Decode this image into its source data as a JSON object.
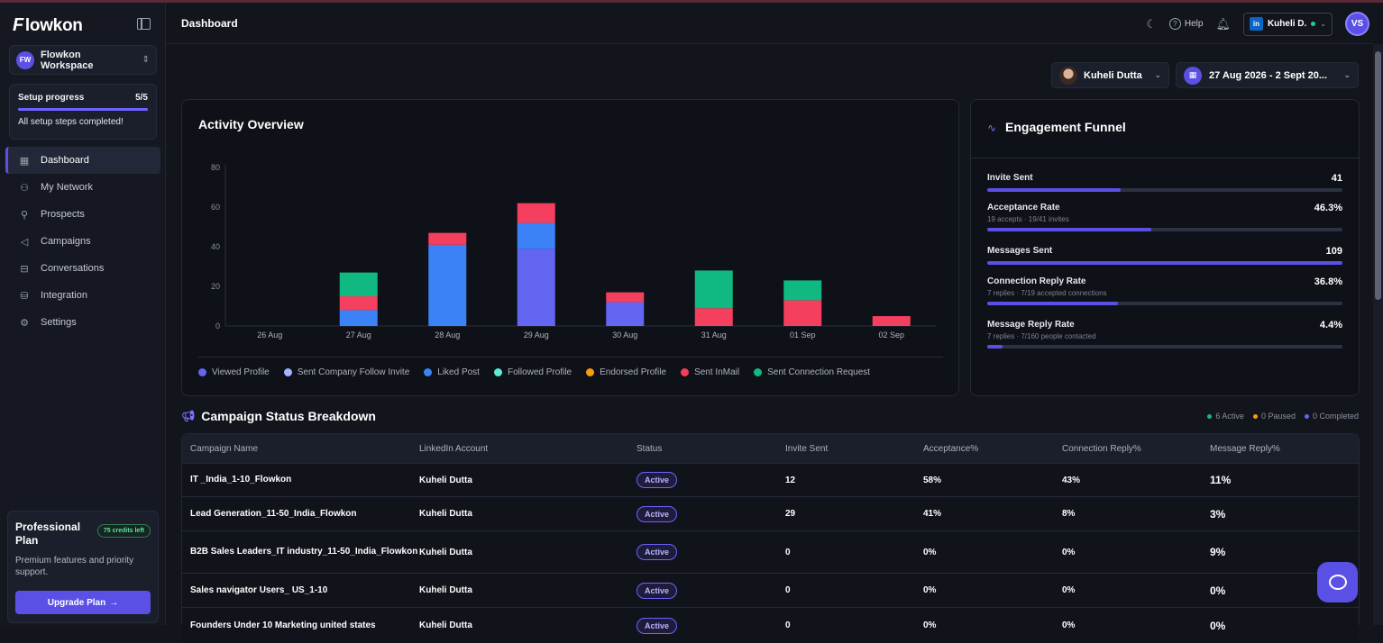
{
  "app": {
    "logo_text": "lowkon",
    "logo_mark": "F",
    "page_title": "Dashboard"
  },
  "workspace": {
    "initials": "FW",
    "name": "Flowkon Workspace"
  },
  "setup": {
    "title": "Setup progress",
    "count": "5/5",
    "progress": 1.0,
    "message": "All setup steps completed!"
  },
  "nav": [
    {
      "label": "Dashboard",
      "icon": "grid-icon",
      "glyph": "▦"
    },
    {
      "label": "My Network",
      "icon": "users-icon",
      "glyph": "⚇"
    },
    {
      "label": "Prospects",
      "icon": "search-icon",
      "glyph": "⚲"
    },
    {
      "label": "Campaigns",
      "icon": "megaphone-icon",
      "glyph": "◁"
    },
    {
      "label": "Conversations",
      "icon": "inbox-icon",
      "glyph": "⊟"
    },
    {
      "label": "Integration",
      "icon": "database-icon",
      "glyph": "⛁"
    },
    {
      "label": "Settings",
      "icon": "gear-icon",
      "glyph": "⚙"
    }
  ],
  "plan": {
    "title": "Professional Plan",
    "credits": "75 credits left",
    "description": "Premium features and priority support.",
    "button": "Upgrade Plan",
    "button_arrow": "→"
  },
  "header": {
    "help": "Help",
    "account_name": "Kuheli D.",
    "account_badge": "in",
    "avatar": "VS"
  },
  "filters": {
    "user": "Kuheli Dutta",
    "date": "27 Aug 2026 - 2 Sept 20..."
  },
  "activity": {
    "title": "Activity Overview"
  },
  "chart_data": {
    "type": "bar",
    "stacked": true,
    "categories": [
      "26 Aug",
      "27 Aug",
      "28 Aug",
      "29 Aug",
      "30 Aug",
      "31 Aug",
      "01 Sep",
      "02 Sep"
    ],
    "ylim": [
      0,
      80
    ],
    "yticks": [
      0,
      20,
      40,
      60,
      80
    ],
    "grid": false,
    "legend_position": "bottom",
    "series": [
      {
        "name": "Viewed Profile",
        "color": "#6366f1",
        "values": [
          0,
          0,
          0,
          39,
          12,
          0,
          0,
          0
        ]
      },
      {
        "name": "Sent Company Follow Invite",
        "color": "#a5b4fc",
        "values": [
          0,
          0,
          0,
          0,
          0,
          0,
          0,
          0
        ]
      },
      {
        "name": "Liked Post",
        "color": "#3b82f6",
        "values": [
          0,
          8,
          41,
          13,
          0,
          0,
          0,
          0
        ]
      },
      {
        "name": "Followed Profile",
        "color": "#5eead4",
        "values": [
          0,
          0,
          0,
          0,
          0,
          0,
          0,
          0
        ]
      },
      {
        "name": "Endorsed Profile",
        "color": "#f59e0b",
        "values": [
          0,
          0,
          0,
          0,
          0,
          0,
          0,
          0
        ]
      },
      {
        "name": "Sent InMail",
        "color": "#f43f5e",
        "values": [
          0,
          7,
          6,
          10,
          5,
          9,
          13,
          5
        ]
      },
      {
        "name": "Sent Connection Request",
        "color": "#10b981",
        "values": [
          0,
          12,
          0,
          0,
          0,
          19,
          10,
          0
        ]
      }
    ]
  },
  "funnel": {
    "title": "Engagement Funnel",
    "rows": [
      {
        "label": "Invite Sent",
        "value": "41",
        "sub": "",
        "fill": 0.375
      },
      {
        "label": "Acceptance Rate",
        "value": "46.3%",
        "sub": "19 accepts · 19/41 invites",
        "fill": 0.463
      },
      {
        "label": "Messages Sent",
        "value": "109",
        "sub": "",
        "fill": 1.0
      },
      {
        "label": "Connection Reply Rate",
        "value": "36.8%",
        "sub": "7 replies · 7/19 accepted connections",
        "fill": 0.368
      },
      {
        "label": "Message Reply Rate",
        "value": "4.4%",
        "sub": "7 replies · 7/160 people contacted",
        "fill": 0.044
      }
    ]
  },
  "campaigns": {
    "title": "Campaign Status Breakdown",
    "status_summary": [
      {
        "label": "6 Active",
        "color": "#10b981"
      },
      {
        "label": "0 Paused",
        "color": "#f59e0b"
      },
      {
        "label": "0 Completed",
        "color": "#6366f1"
      }
    ],
    "columns": [
      "Campaign Name",
      "LinkedIn Account",
      "Status",
      "Invite Sent",
      "Acceptance%",
      "Connection Reply%",
      "Message Reply%"
    ],
    "rows": [
      {
        "name": "IT _India_1-10_Flowkon",
        "account": "Kuheli Dutta",
        "status": "Active",
        "invites": "12",
        "acceptance": "58%",
        "conn_reply": "43%",
        "msg_reply": "11%"
      },
      {
        "name": "Lead Generation_11-50_India_Flowkon",
        "account": "Kuheli Dutta",
        "status": "Active",
        "invites": "29",
        "acceptance": "41%",
        "conn_reply": "8%",
        "msg_reply": "3%"
      },
      {
        "name": "B2B Sales Leaders_IT industry_11-50_India_Flowkon",
        "account": "Kuheli Dutta",
        "status": "Active",
        "invites": "0",
        "acceptance": "0%",
        "conn_reply": "0%",
        "msg_reply": "9%"
      },
      {
        "name": "Sales navigator Users_ US_1-10",
        "account": "Kuheli Dutta",
        "status": "Active",
        "invites": "0",
        "acceptance": "0%",
        "conn_reply": "0%",
        "msg_reply": "0%"
      },
      {
        "name": "Founders Under 10 Marketing united states",
        "account": "Kuheli Dutta",
        "status": "Active",
        "invites": "0",
        "acceptance": "0%",
        "conn_reply": "0%",
        "msg_reply": "0%"
      }
    ]
  }
}
